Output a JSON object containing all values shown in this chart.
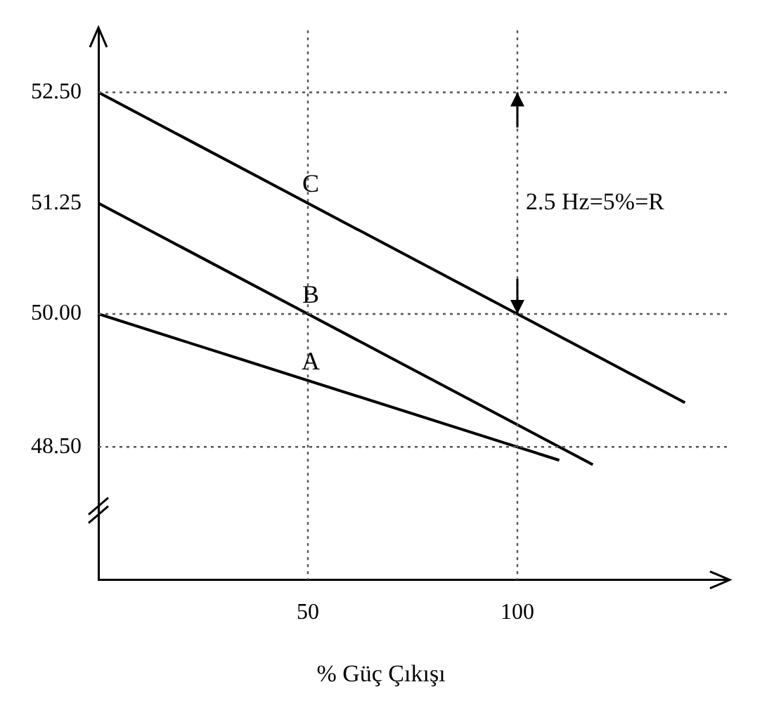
{
  "chart_data": {
    "type": "line",
    "xlabel": "% Güç Çıkışı",
    "series": [
      {
        "name": "A",
        "color": "#000000",
        "x": [
          0,
          100,
          110
        ],
        "values": [
          50.0,
          48.5,
          48.35
        ]
      },
      {
        "name": "B",
        "color": "#000000",
        "x": [
          0,
          50,
          118
        ],
        "values": [
          51.25,
          50.0,
          48.3
        ]
      },
      {
        "name": "C",
        "color": "#000000",
        "x": [
          0,
          100,
          140
        ],
        "values": [
          52.5,
          50.0,
          49.0
        ]
      }
    ],
    "xlim": [
      0,
      150
    ],
    "xticks": [
      50,
      100
    ],
    "ylim": [
      47.0,
      53.2
    ],
    "yticks": [
      {
        "value": 48.5,
        "label": "48.50"
      },
      {
        "value": 50.0,
        "label": "50.00"
      },
      {
        "value": 51.25,
        "label": "51.25"
      },
      {
        "value": 52.5,
        "label": "52.50"
      }
    ],
    "ref_lines": [
      {
        "axis": "y",
        "value": 52.5,
        "color": "#555555",
        "line_style": "dotted"
      },
      {
        "axis": "y",
        "value": 50.0,
        "color": "#555555",
        "line_style": "dotted"
      },
      {
        "axis": "y",
        "value": 48.5,
        "color": "#555555",
        "line_style": "dotted"
      },
      {
        "axis": "x",
        "value": 50,
        "color": "#555555",
        "line_style": "dotted"
      },
      {
        "axis": "x",
        "value": 100,
        "color": "#555555",
        "line_style": "dotted"
      }
    ],
    "annotations": [
      {
        "text": "2.5 Hz=5%=R",
        "x": 100,
        "y": 51.25
      }
    ],
    "grid": false,
    "legend": false,
    "marker": "none",
    "line_style": "solid"
  }
}
